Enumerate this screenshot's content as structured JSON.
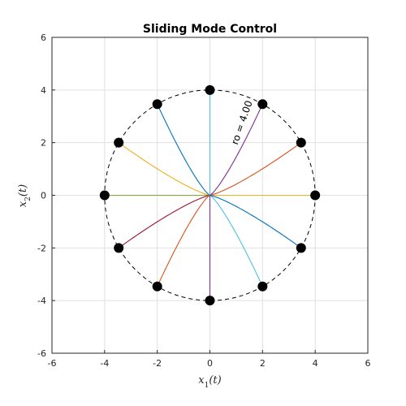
{
  "chart_data": {
    "type": "line",
    "title": "Sliding Mode Control",
    "xlabel": "x1(t)",
    "ylabel": "x2(t)",
    "xlim": [
      -6,
      6
    ],
    "ylim": [
      -6,
      6
    ],
    "x_ticks": [
      "-6",
      "-4",
      "-2",
      "0",
      "2",
      "4",
      "6"
    ],
    "y_ticks": [
      "-6",
      "-4",
      "-2",
      "0",
      "2",
      "4",
      "6"
    ],
    "grid": true,
    "annotation": "ro = 4.00",
    "circle_radius": 4.0,
    "colors": [
      "#0072BD",
      "#D95319",
      "#EDB120",
      "#7E2F8E",
      "#77AC30",
      "#4DBEEE",
      "#A2142F"
    ],
    "start_points": [
      [
        4.0,
        0.0
      ],
      [
        3.464,
        2.0
      ],
      [
        2.0,
        3.464
      ],
      [
        0.0,
        4.0
      ],
      [
        -2.0,
        3.464
      ],
      [
        -3.464,
        2.0
      ],
      [
        -4.0,
        0.0
      ],
      [
        -3.464,
        -2.0
      ],
      [
        -2.0,
        -3.464
      ],
      [
        0.0,
        -4.0
      ],
      [
        2.0,
        -3.464
      ],
      [
        3.464,
        -2.0
      ]
    ],
    "series": [
      {
        "start": [
          4.0,
          0.0
        ],
        "color": "#EDB120"
      },
      {
        "start": [
          3.464,
          2.0
        ],
        "color": "#D95319"
      },
      {
        "start": [
          2.0,
          3.464
        ],
        "color": "#7E2F8E"
      },
      {
        "start": [
          0.0,
          4.0
        ],
        "color": "#4DBEEE"
      },
      {
        "start": [
          -2.0,
          3.464
        ],
        "color": "#0072BD"
      },
      {
        "start": [
          -3.464,
          2.0
        ],
        "color": "#EDB120"
      },
      {
        "start": [
          -4.0,
          0.0
        ],
        "color": "#77AC30"
      },
      {
        "start": [
          -3.464,
          -2.0
        ],
        "color": "#A2142F"
      },
      {
        "start": [
          -2.0,
          -3.464
        ],
        "color": "#D95319"
      },
      {
        "start": [
          0.0,
          -4.0
        ],
        "color": "#7E2F8E"
      },
      {
        "start": [
          2.0,
          -3.464
        ],
        "color": "#4DBEEE"
      },
      {
        "start": [
          3.464,
          -2.0
        ],
        "color": "#0072BD"
      }
    ]
  }
}
